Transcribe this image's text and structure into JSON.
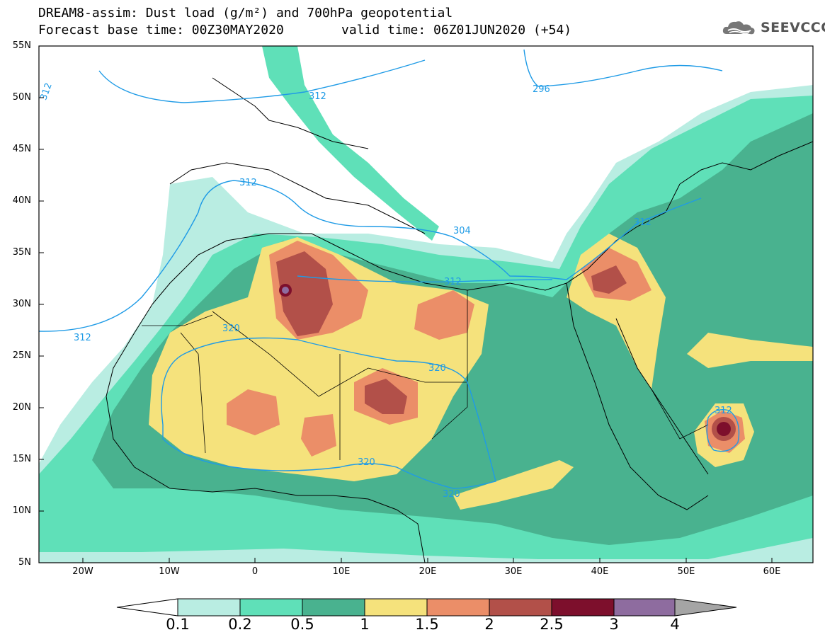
{
  "header": {
    "line1": "DREAM8-assim: Dust load (g/m²) and 700hPa geopotential",
    "line2a": "Forecast base time: 00Z30MAY2020",
    "line2b": "valid time: 06Z01JUN2020 (+54)"
  },
  "logo": {
    "text": "SEEVCCC",
    "icon": "cloud-logo-icon"
  },
  "axes": {
    "lat_labels": [
      "55N",
      "50N",
      "45N",
      "40N",
      "35N",
      "30N",
      "25N",
      "20N",
      "15N",
      "10N",
      "5N"
    ],
    "lon_labels": [
      "20W",
      "10W",
      "0",
      "10E",
      "20E",
      "30E",
      "40E",
      "50E",
      "60E"
    ]
  },
  "contours": [
    "312",
    "312",
    "296",
    "312",
    "304",
    "312",
    "312",
    "320",
    "320",
    "320",
    "320",
    "312"
  ],
  "colorbar": {
    "labels": [
      "0.1",
      "0.2",
      "0.5",
      "1",
      "1.5",
      "2",
      "2.5",
      "3",
      "4"
    ],
    "colors": [
      "#b9ede2",
      "#5fe0b8",
      "#49b28f",
      "#f5e27c",
      "#eb8e68",
      "#b25049",
      "#7d0f2c",
      "#8e6c9f",
      "#a5a5a5"
    ]
  }
}
